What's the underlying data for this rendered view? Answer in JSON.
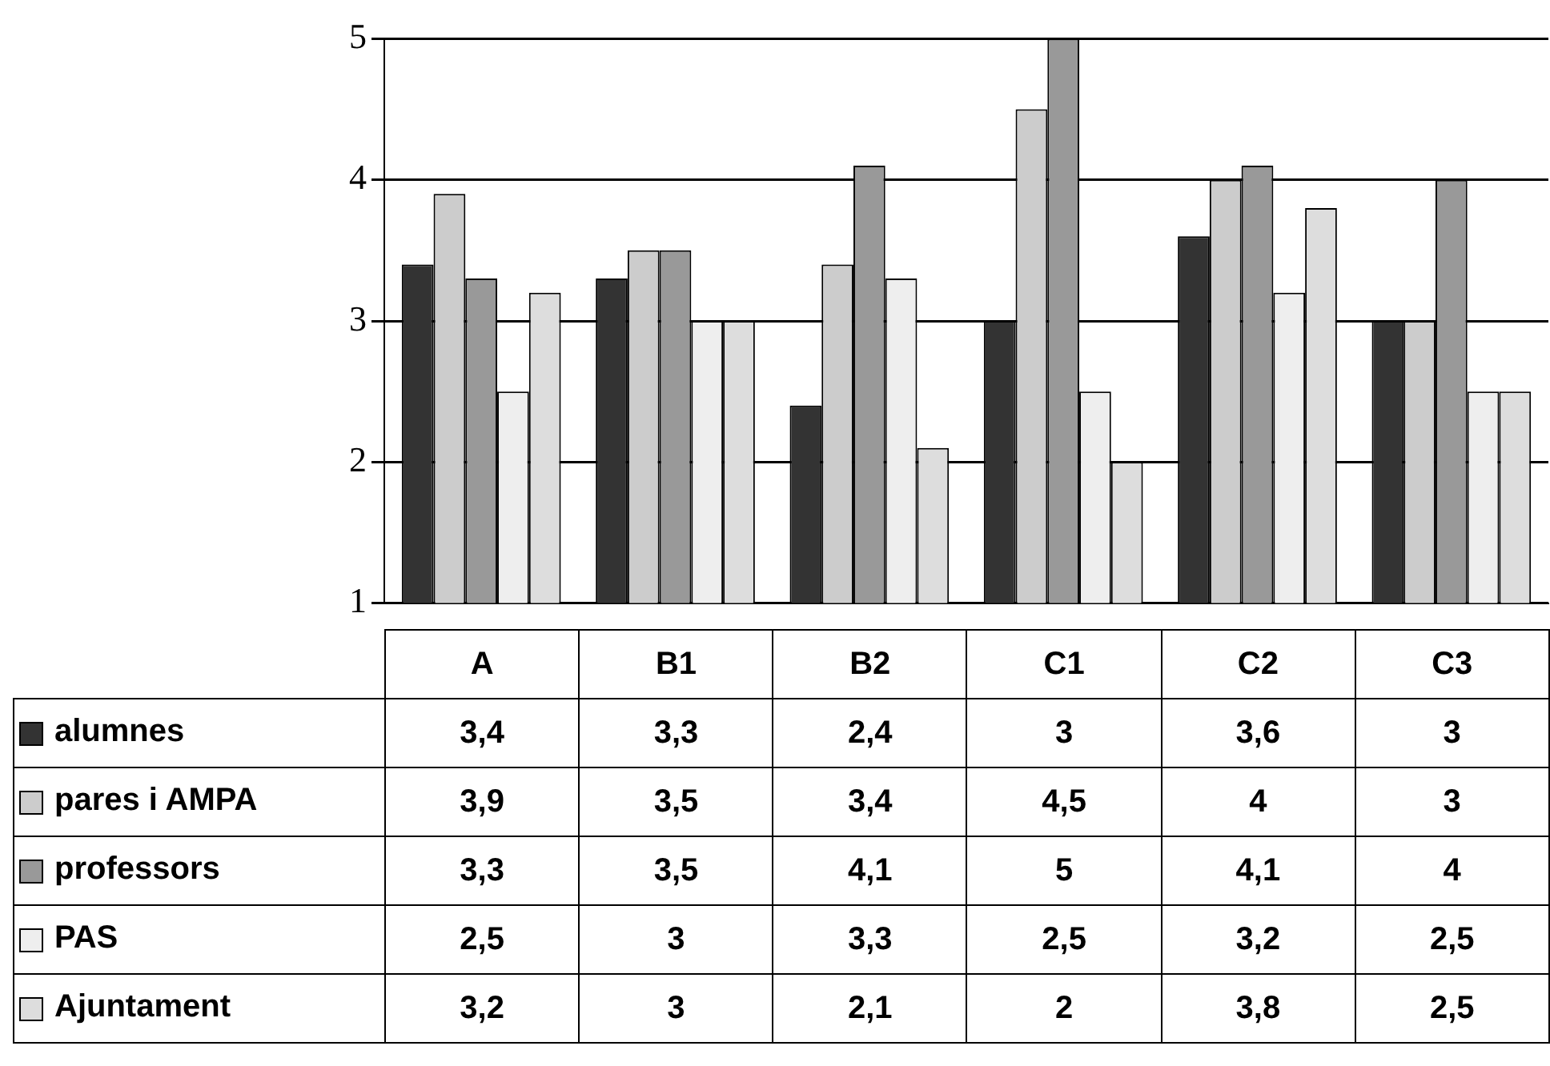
{
  "chart_data": {
    "type": "bar",
    "categories": [
      "A",
      "B1",
      "B2",
      "C1",
      "C2",
      "C3"
    ],
    "series": [
      {
        "name": "alumnes",
        "color": "#333333",
        "values": [
          3.4,
          3.3,
          2.4,
          3,
          3.6,
          3
        ],
        "value_labels": [
          "3,4",
          "3,3",
          "2,4",
          "3",
          "3,6",
          "3"
        ]
      },
      {
        "name": "pares i AMPA",
        "color": "#cccccc",
        "values": [
          3.9,
          3.5,
          3.4,
          4.5,
          4,
          3
        ],
        "value_labels": [
          "3,9",
          "3,5",
          "3,4",
          "4,5",
          "4",
          "3"
        ]
      },
      {
        "name": "professors",
        "color": "#999999",
        "values": [
          3.3,
          3.5,
          4.1,
          5,
          4.1,
          4
        ],
        "value_labels": [
          "3,3",
          "3,5",
          "4,1",
          "5",
          "4,1",
          "4"
        ]
      },
      {
        "name": "PAS",
        "color": "#eeeeee",
        "values": [
          2.5,
          3,
          3.3,
          2.5,
          3.2,
          2.5
        ],
        "value_labels": [
          "2,5",
          "3",
          "3,3",
          "2,5",
          "3,2",
          "2,5"
        ]
      },
      {
        "name": "Ajuntament",
        "color": "#dddddd",
        "values": [
          3.2,
          3,
          2.1,
          2,
          3.8,
          2.5
        ],
        "value_labels": [
          "3,2",
          "3",
          "2,1",
          "2",
          "3,8",
          "2,5"
        ]
      }
    ],
    "ylim": [
      1,
      5
    ],
    "yticks": [
      1,
      2,
      3,
      4,
      5
    ],
    "grid": "y",
    "legend": "bottom"
  }
}
